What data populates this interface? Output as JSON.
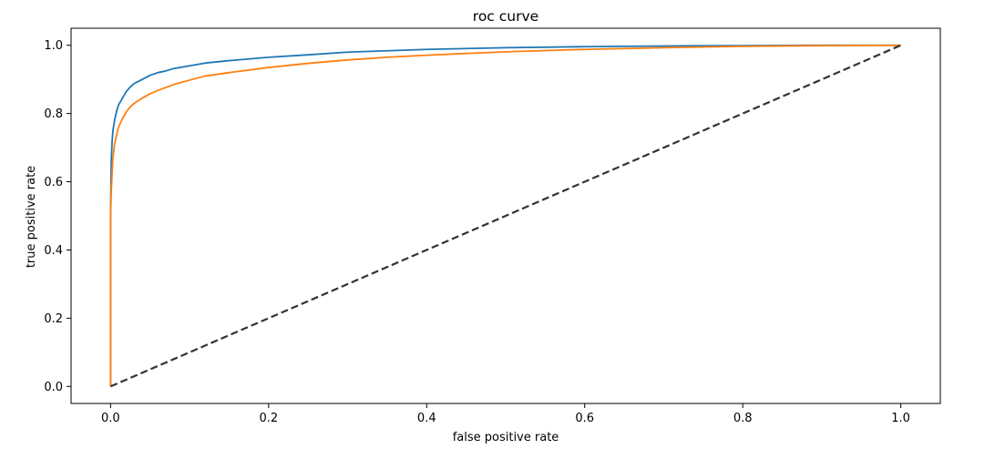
{
  "chart_data": {
    "type": "line",
    "title": "roc curve",
    "xlabel": "false positive rate",
    "ylabel": "true positive rate",
    "xlim": [
      -0.05,
      1.05
    ],
    "ylim": [
      -0.05,
      1.05
    ],
    "x_ticks": [
      0.0,
      0.2,
      0.4,
      0.6,
      0.8,
      1.0
    ],
    "y_ticks": [
      0.0,
      0.2,
      0.4,
      0.6,
      0.8,
      1.0
    ],
    "x_tick_labels": [
      "0.0",
      "0.2",
      "0.4",
      "0.6",
      "0.8",
      "1.0"
    ],
    "y_tick_labels": [
      "0.0",
      "0.2",
      "0.4",
      "0.6",
      "0.8",
      "1.0"
    ],
    "grid": false,
    "legend": "none",
    "series": [
      {
        "color": "#1f77b4",
        "style": "solid",
        "x": [
          0.0,
          0.0,
          0.0005,
          0.001,
          0.002,
          0.003,
          0.005,
          0.008,
          0.01,
          0.015,
          0.02,
          0.025,
          0.03,
          0.04,
          0.05,
          0.06,
          0.07,
          0.08,
          0.1,
          0.12,
          0.15,
          0.2,
          0.25,
          0.3,
          0.4,
          0.5,
          0.6,
          0.7,
          0.8,
          0.9,
          1.0
        ],
        "y": [
          0.0,
          0.5,
          0.6,
          0.67,
          0.72,
          0.75,
          0.78,
          0.81,
          0.825,
          0.845,
          0.865,
          0.878,
          0.888,
          0.9,
          0.912,
          0.92,
          0.925,
          0.932,
          0.94,
          0.948,
          0.955,
          0.965,
          0.972,
          0.98,
          0.988,
          0.993,
          0.996,
          0.998,
          0.999,
          1.0,
          1.0
        ]
      },
      {
        "color": "#ff7f0e",
        "style": "solid",
        "x": [
          0.0,
          0.0,
          0.001,
          0.002,
          0.003,
          0.005,
          0.008,
          0.01,
          0.015,
          0.02,
          0.025,
          0.03,
          0.04,
          0.05,
          0.06,
          0.08,
          0.1,
          0.12,
          0.15,
          0.2,
          0.25,
          0.3,
          0.35,
          0.4,
          0.5,
          0.6,
          0.7,
          0.8,
          0.9,
          1.0
        ],
        "y": [
          0.0,
          0.5,
          0.58,
          0.63,
          0.67,
          0.71,
          0.74,
          0.76,
          0.785,
          0.805,
          0.82,
          0.83,
          0.845,
          0.858,
          0.868,
          0.885,
          0.898,
          0.91,
          0.92,
          0.935,
          0.947,
          0.957,
          0.965,
          0.971,
          0.981,
          0.988,
          0.993,
          0.997,
          0.999,
          1.0
        ]
      },
      {
        "color": "#333333",
        "style": "dashed",
        "x": [
          0.0,
          1.0
        ],
        "y": [
          0.0,
          1.0
        ]
      }
    ]
  }
}
